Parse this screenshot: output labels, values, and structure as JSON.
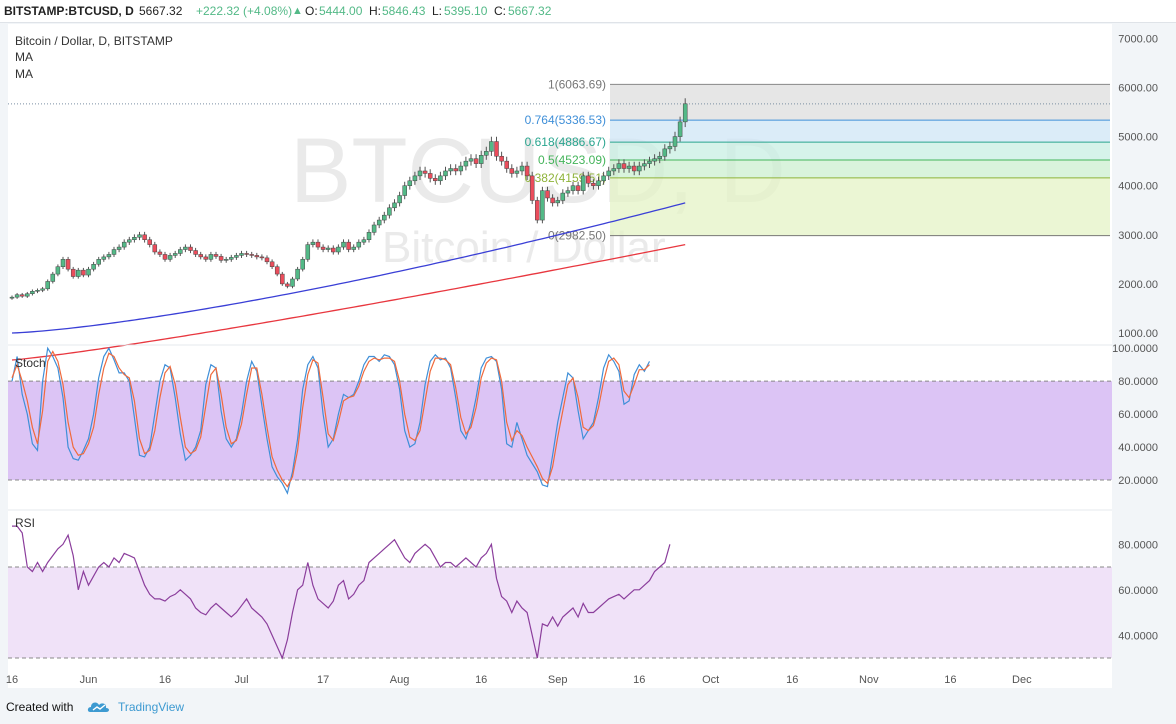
{
  "header": {
    "symbol": "BITSTAMP:BTCUSD, D",
    "last": "5667.32",
    "change": "+222.32 (+4.08%)",
    "o_label": "O:",
    "o_val": "5444.00",
    "h_label": "H:",
    "h_val": "5846.43",
    "l_label": "L:",
    "l_val": "5395.10",
    "c_label": "C:",
    "c_val": "5667.32"
  },
  "legend": {
    "title": "Bitcoin / Dollar, D, BITSTAMP",
    "ma1": "MA",
    "ma2": "MA"
  },
  "watermark": {
    "big": "BTCUSD, D",
    "small": "Bitcoin / Dollar"
  },
  "footer": {
    "created_with": "Created with",
    "brand": "TradingView"
  },
  "colors": {
    "up": "#53b987",
    "down": "#eb4d5c",
    "ma_fast": "#3a3fd6",
    "ma_slow": "#e8373f",
    "stoch_k": "#3f8fd8",
    "stoch_d": "#f06a3c",
    "rsi": "#8b3e9c",
    "stoch_band": "#dcc4f5",
    "rsi_band": "#f0e2f8"
  },
  "chart_data": [
    {
      "type": "candlestick",
      "title": "Bitcoin / Dollar, D, BITSTAMP",
      "ylim": [
        0,
        7500
      ],
      "yticks": [
        "1000.00",
        "2000.00",
        "3000.00",
        "4000.00",
        "5000.00",
        "6000.00",
        "7000.00"
      ],
      "ytick_values": [
        1000,
        2000,
        3000,
        4000,
        5000,
        6000,
        7000
      ],
      "xticks": [
        "16",
        "Jun",
        "16",
        "Jul",
        "17",
        "Aug",
        "16",
        "Sep",
        "16",
        "Oct",
        "16",
        "Nov",
        "16",
        "Dec"
      ],
      "xtick_days": [
        0,
        15,
        30,
        45,
        61,
        76,
        92,
        107,
        123,
        137,
        153,
        168,
        184,
        198
      ],
      "date_range": [
        "2017-05-16",
        "2017-10-12"
      ],
      "close": [
        1730,
        1780,
        1750,
        1800,
        1850,
        1870,
        1900,
        2050,
        2200,
        2350,
        2500,
        2300,
        2150,
        2280,
        2180,
        2300,
        2400,
        2500,
        2550,
        2600,
        2700,
        2750,
        2850,
        2900,
        2950,
        3000,
        2900,
        2800,
        2650,
        2600,
        2500,
        2580,
        2620,
        2700,
        2750,
        2680,
        2600,
        2550,
        2500,
        2600,
        2560,
        2480,
        2500,
        2540,
        2580,
        2620,
        2600,
        2580,
        2550,
        2530,
        2450,
        2350,
        2200,
        2000,
        1950,
        2100,
        2300,
        2500,
        2800,
        2850,
        2750,
        2700,
        2730,
        2650,
        2750,
        2850,
        2700,
        2750,
        2850,
        2900,
        3050,
        3200,
        3300,
        3400,
        3550,
        3650,
        3800,
        4000,
        4100,
        4200,
        4300,
        4250,
        4150,
        4100,
        4200,
        4300,
        4350,
        4300,
        4400,
        4500,
        4550,
        4450,
        4620,
        4700,
        4900,
        4600,
        4500,
        4350,
        4250,
        4300,
        4400,
        4200,
        3700,
        3300,
        3900,
        3750,
        3650,
        3700,
        3850,
        3900,
        4000,
        3900,
        4200,
        4050,
        4000,
        4100,
        4200,
        4300,
        4350,
        4450,
        4350,
        4400,
        4300,
        4400,
        4450,
        4500,
        4550,
        4600,
        4750,
        4800,
        5000,
        5300,
        5667.32
      ],
      "fib_levels": [
        {
          "label": "1(6063.69)",
          "value": 6063.69
        },
        {
          "label": "0.764(5336.53)",
          "value": 5336.53
        },
        {
          "label": "0.618(4886.67)",
          "value": 4886.67
        },
        {
          "label": "0.5(4523.09)",
          "value": 4523.09
        },
        {
          "label": "0.382(4159.51)",
          "value": 4159.51
        },
        {
          "label": "0(2982.50)",
          "value": 2982.5
        }
      ],
      "series": [
        {
          "name": "MA",
          "type": "line",
          "start": 1000,
          "end": 3650
        },
        {
          "name": "MA",
          "type": "line",
          "start": 450,
          "end": 2800
        }
      ]
    },
    {
      "type": "line",
      "title": "Stoch",
      "ylim": [
        0,
        100
      ],
      "yticks": [
        "20.0000",
        "40.0000",
        "60.0000",
        "80.0000",
        "100.0000"
      ],
      "ytick_values": [
        20,
        40,
        60,
        80,
        100
      ],
      "band": [
        20,
        80
      ],
      "series": [
        {
          "values": [
            80,
            95,
            72,
            60,
            42,
            38,
            80,
            100,
            95,
            88,
            70,
            40,
            33,
            32,
            38,
            45,
            60,
            82,
            95,
            100,
            93,
            85,
            85,
            80,
            58,
            35,
            34,
            40,
            60,
            80,
            90,
            88,
            70,
            48,
            32,
            35,
            40,
            50,
            78,
            90,
            88,
            62,
            45,
            40,
            45,
            60,
            80,
            92,
            86,
            65,
            45,
            28,
            22,
            18,
            12,
            25,
            45,
            75,
            90,
            95,
            88,
            60,
            40,
            45,
            60,
            72,
            70,
            72,
            80,
            90,
            95,
            95,
            92,
            96,
            95,
            90,
            75,
            50,
            40,
            42,
            55,
            78,
            92,
            96,
            93,
            94,
            88,
            70,
            50,
            45,
            55,
            70,
            88,
            94,
            95,
            92,
            75,
            42,
            40,
            55,
            45,
            35,
            30,
            25,
            17,
            16,
            35,
            55,
            70,
            85,
            82,
            62,
            45,
            50,
            55,
            70,
            88,
            96,
            92,
            86,
            66,
            68,
            84,
            90,
            86,
            92
          ]
        },
        {
          "values": [
            82,
            90,
            80,
            68,
            52,
            42,
            62,
            92,
            98,
            92,
            78,
            55,
            40,
            35,
            36,
            42,
            52,
            72,
            88,
            97,
            95,
            88,
            84,
            82,
            68,
            45,
            36,
            38,
            50,
            70,
            85,
            89,
            78,
            58,
            40,
            36,
            38,
            46,
            65,
            84,
            88,
            72,
            52,
            42,
            44,
            54,
            72,
            88,
            88,
            72,
            52,
            34,
            26,
            20,
            16,
            22,
            38,
            64,
            84,
            93,
            91,
            70,
            48,
            44,
            55,
            68,
            70,
            71,
            77,
            86,
            92,
            94,
            93,
            94,
            94,
            92,
            80,
            60,
            46,
            44,
            50,
            68,
            86,
            94,
            94,
            93,
            90,
            76,
            58,
            48,
            52,
            64,
            82,
            91,
            94,
            93,
            80,
            55,
            44,
            50,
            47,
            40,
            34,
            28,
            21,
            18,
            28,
            46,
            62,
            78,
            82,
            70,
            52,
            50,
            53,
            64,
            80,
            92,
            94,
            90,
            74,
            70,
            78,
            87,
            87,
            90
          ]
        }
      ]
    },
    {
      "type": "line",
      "title": "RSI",
      "ylim": [
        25,
        95
      ],
      "yticks": [
        "40.0000",
        "60.0000",
        "80.0000"
      ],
      "ytick_values": [
        40,
        60,
        80
      ],
      "band": [
        30,
        70
      ],
      "series": [
        {
          "values": [
            88,
            88,
            85,
            70,
            68,
            72,
            68,
            72,
            75,
            78,
            80,
            84,
            75,
            60,
            68,
            62,
            66,
            70,
            72,
            70,
            74,
            72,
            76,
            75,
            74,
            68,
            62,
            58,
            56,
            56,
            55,
            57,
            58,
            60,
            58,
            56,
            52,
            50,
            49,
            52,
            54,
            52,
            50,
            48,
            50,
            53,
            56,
            52,
            50,
            48,
            45,
            40,
            35,
            30,
            38,
            50,
            60,
            62,
            72,
            62,
            56,
            54,
            52,
            55,
            62,
            64,
            56,
            58,
            62,
            64,
            72,
            74,
            76,
            78,
            80,
            82,
            78,
            74,
            72,
            76,
            78,
            80,
            78,
            74,
            70,
            72,
            72,
            70,
            72,
            74,
            72,
            70,
            74,
            76,
            80,
            65,
            57,
            55,
            50,
            55,
            52,
            50,
            40,
            30,
            45,
            44,
            48,
            44,
            48,
            50,
            52,
            48,
            54,
            50,
            50,
            52,
            54,
            56,
            57,
            58,
            56,
            58,
            60,
            60,
            62,
            64,
            68,
            70,
            72,
            80
          ]
        }
      ]
    }
  ]
}
